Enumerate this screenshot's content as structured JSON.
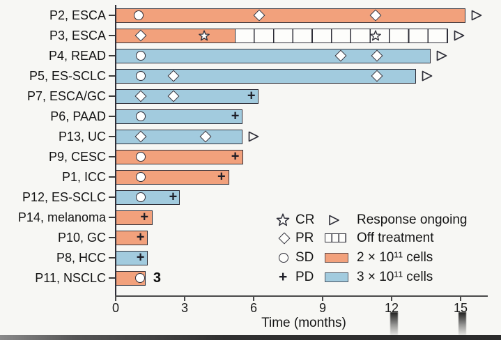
{
  "figure": {
    "xlabel": "Time (months)",
    "annotation_p11": "3"
  },
  "legend": {
    "cr": "CR",
    "pr": "PR",
    "sd": "SD",
    "pd": "PD",
    "ongoing": "Response ongoing",
    "off_treatment": "Off treatment",
    "dose_orange": "2 × 10¹¹ cells",
    "dose_blue": "3 × 10¹¹ cells"
  },
  "colors": {
    "orange": "#F2A17C",
    "blue": "#A2CBDE",
    "outline": "#2E2E38",
    "background": "#F7F7F4"
  },
  "chart_data": {
    "type": "bar",
    "orientation": "horizontal",
    "title": "",
    "xlabel": "Time (months)",
    "ylabel": "",
    "xlim": [
      0,
      16.2
    ],
    "xticks": [
      0,
      3,
      6,
      9,
      12,
      15
    ],
    "grid": false,
    "marker_meaning": {
      "CR": "star",
      "PR": "diamond",
      "SD": "circle",
      "PD": "plus"
    },
    "dose_colors": {
      "2e11": "#F2A17C",
      "3e11": "#A2CBDE"
    },
    "patients": [
      {
        "label": "P2, ESCA",
        "dose": "2e11",
        "duration": 15.2,
        "ongoing": true,
        "markers": [
          {
            "t": 1.0,
            "type": "SD"
          },
          {
            "t": 6.25,
            "type": "PR"
          },
          {
            "t": 11.3,
            "type": "PR"
          }
        ]
      },
      {
        "label": "P3, ESCA",
        "dose": "2e11",
        "duration": 5.2,
        "ongoing": true,
        "off_treatment_until": 14.45,
        "markers": [
          {
            "t": 1.1,
            "type": "PR"
          },
          {
            "t": 3.85,
            "type": "CR"
          },
          {
            "t": 11.3,
            "type": "CR"
          }
        ]
      },
      {
        "label": "P4, READ",
        "dose": "3e11",
        "duration": 13.7,
        "ongoing": true,
        "markers": [
          {
            "t": 1.1,
            "type": "SD"
          },
          {
            "t": 9.8,
            "type": "PR"
          },
          {
            "t": 11.35,
            "type": "PR"
          }
        ]
      },
      {
        "label": "P5, ES-SCLC",
        "dose": "3e11",
        "duration": 13.05,
        "ongoing": true,
        "markers": [
          {
            "t": 1.1,
            "type": "SD"
          },
          {
            "t": 2.5,
            "type": "PR"
          },
          {
            "t": 11.35,
            "type": "PR"
          }
        ]
      },
      {
        "label": "P7, ESCA/GC",
        "dose": "3e11",
        "duration": 6.2,
        "ongoing": false,
        "markers": [
          {
            "t": 1.1,
            "type": "PR"
          },
          {
            "t": 2.5,
            "type": "PR"
          },
          {
            "t": 5.9,
            "type": "PD"
          }
        ]
      },
      {
        "label": "P6, PAAD",
        "dose": "3e11",
        "duration": 5.5,
        "ongoing": false,
        "markers": [
          {
            "t": 1.1,
            "type": "SD"
          },
          {
            "t": 5.2,
            "type": "PD"
          }
        ]
      },
      {
        "label": "P13, UC",
        "dose": "3e11",
        "duration": 5.5,
        "ongoing": true,
        "markers": [
          {
            "t": 1.1,
            "type": "PR"
          },
          {
            "t": 3.9,
            "type": "PR"
          }
        ]
      },
      {
        "label": "P9, CESC",
        "dose": "2e11",
        "duration": 5.55,
        "ongoing": false,
        "markers": [
          {
            "t": 1.1,
            "type": "SD"
          },
          {
            "t": 5.2,
            "type": "PD"
          }
        ]
      },
      {
        "label": "P1, ICC",
        "dose": "2e11",
        "duration": 4.95,
        "ongoing": false,
        "markers": [
          {
            "t": 1.1,
            "type": "SD"
          },
          {
            "t": 4.6,
            "type": "PD"
          }
        ]
      },
      {
        "label": "P12, ES-SCLC",
        "dose": "3e11",
        "duration": 2.8,
        "ongoing": false,
        "markers": [
          {
            "t": 1.1,
            "type": "SD"
          },
          {
            "t": 2.5,
            "type": "PD"
          }
        ]
      },
      {
        "label": "P14, melanoma",
        "dose": "2e11",
        "duration": 1.6,
        "ongoing": false,
        "markers": [
          {
            "t": 1.25,
            "type": "PD"
          }
        ]
      },
      {
        "label": "P10, GC",
        "dose": "2e11",
        "duration": 1.4,
        "ongoing": false,
        "markers": [
          {
            "t": 1.08,
            "type": "PD"
          }
        ]
      },
      {
        "label": "P8, HCC",
        "dose": "3e11",
        "duration": 1.4,
        "ongoing": false,
        "markers": [
          {
            "t": 1.08,
            "type": "PD"
          }
        ]
      },
      {
        "label": "P11, NSCLC",
        "dose": "2e11",
        "duration": 1.3,
        "ongoing": false,
        "annotation": "3",
        "markers": [
          {
            "t": 1.05,
            "type": "SD"
          }
        ]
      }
    ]
  }
}
